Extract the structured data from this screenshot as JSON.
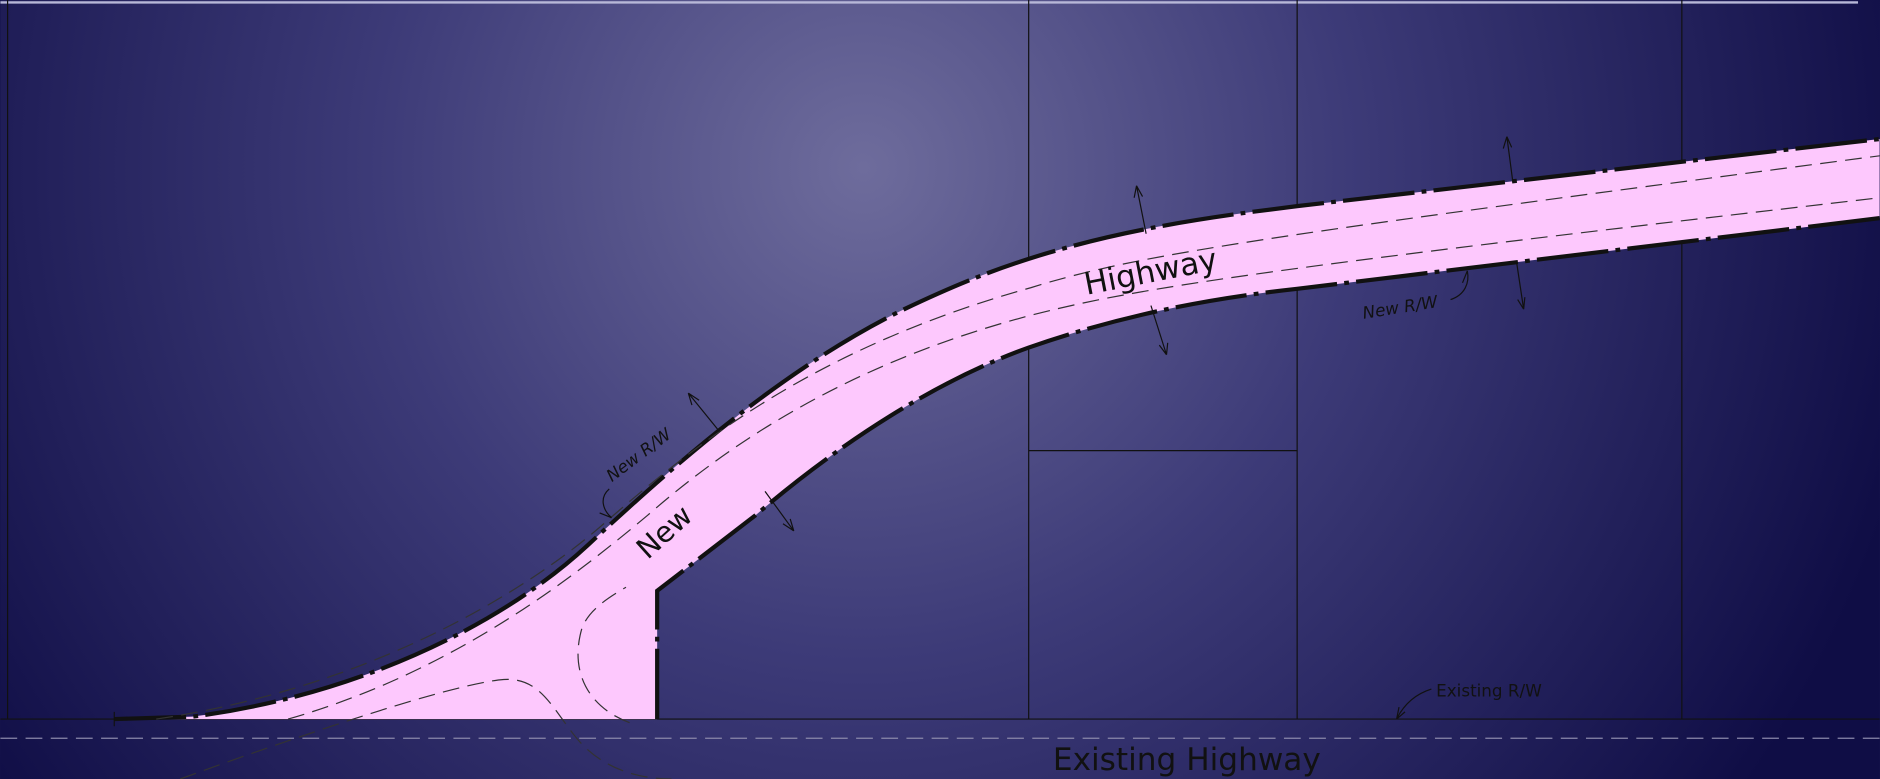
{
  "labels": {
    "new": "New",
    "highway": "Highway",
    "new_rw_left": "New R/W",
    "new_rw_right": "New R/W",
    "existing_rw": "Existing R/W",
    "existing_highway": "Existing Highway"
  }
}
